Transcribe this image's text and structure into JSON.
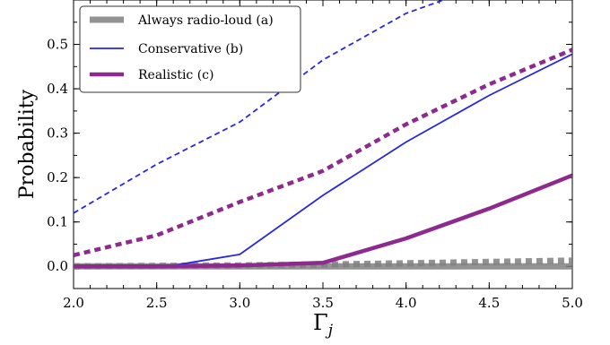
{
  "chart_data": {
    "type": "line",
    "xlabel": "Γ",
    "xlabel_sub": "j",
    "ylabel": "Probability",
    "xlim": [
      2.0,
      5.0
    ],
    "ylim": [
      -0.05,
      0.6
    ],
    "xticks": [
      "2.0",
      "2.5",
      "3.0",
      "3.5",
      "4.0",
      "4.5",
      "5.0"
    ],
    "yticks": [
      "0.0",
      "0.1",
      "0.2",
      "0.3",
      "0.4",
      "0.5"
    ],
    "legend_position": "top-left",
    "series": [
      {
        "name": "Always radio-loud (a)",
        "color": "#808080",
        "style": "solid",
        "x": [
          2.0,
          2.5,
          3.0,
          3.5,
          4.0,
          4.5,
          5.0
        ],
        "y": [
          0.0,
          0.0,
          0.0,
          0.0,
          0.0,
          0.0,
          0.0
        ]
      },
      {
        "name": "",
        "color": "#808080",
        "style": "dashed",
        "x": [
          2.0,
          2.5,
          3.0,
          3.5,
          4.0,
          4.5,
          5.0
        ],
        "y": [
          0.0,
          0.001,
          0.002,
          0.004,
          0.007,
          0.01,
          0.013
        ]
      },
      {
        "name": "Conservative (b)",
        "color": "#2727e0",
        "style": "solid",
        "x": [
          2.0,
          2.5,
          2.6,
          3.0,
          3.5,
          4.0,
          4.5,
          5.0
        ],
        "y": [
          0.0,
          0.0,
          0.002,
          0.027,
          0.16,
          0.28,
          0.385,
          0.478
        ]
      },
      {
        "name": "",
        "color": "#2727e0",
        "style": "dashed",
        "x": [
          2.0,
          2.5,
          3.0,
          3.5,
          4.0,
          4.3
        ],
        "y": [
          0.12,
          0.23,
          0.325,
          0.465,
          0.57,
          0.61
        ]
      },
      {
        "name": "Realistic (c)",
        "color": "#8e2a8e",
        "style": "solid",
        "x": [
          2.0,
          2.5,
          3.0,
          3.5,
          4.0,
          4.5,
          5.0
        ],
        "y": [
          0.0,
          0.0,
          0.002,
          0.008,
          0.063,
          0.13,
          0.205
        ]
      },
      {
        "name": "",
        "color": "#8e2a8e",
        "style": "dashed",
        "x": [
          2.0,
          2.5,
          3.0,
          3.5,
          4.0,
          4.5,
          5.0
        ],
        "y": [
          0.025,
          0.07,
          0.145,
          0.215,
          0.32,
          0.41,
          0.488
        ]
      }
    ]
  }
}
